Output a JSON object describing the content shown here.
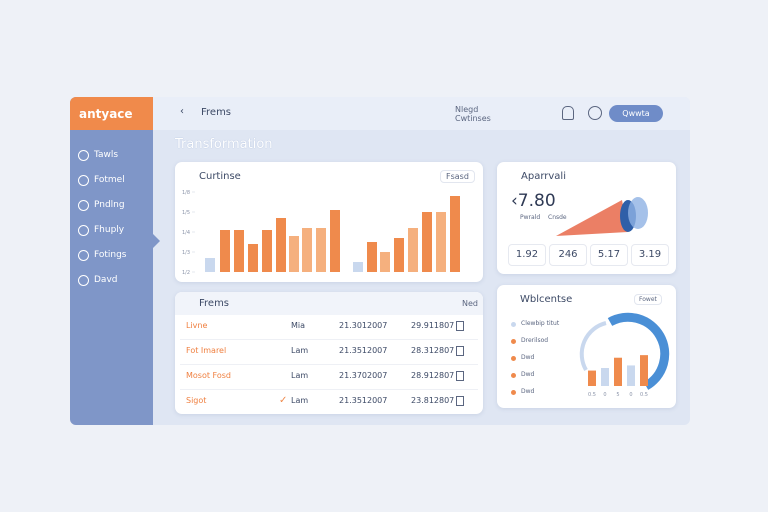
{
  "logo": "antyace",
  "nav": [
    "Tawls",
    "Fotmel",
    "Pndlng",
    "Fhuply",
    "Fotings",
    "Davd"
  ],
  "header": {
    "breadcrumb": "Frems",
    "info": "Nlegd Cwtinses",
    "button": "Qwwta"
  },
  "page_title": "Transformation",
  "bar_card": {
    "title": "Curtinse",
    "dropdown": "Fsasd",
    "ylim": [
      0,
      20
    ],
    "yticks": [
      {
        "value": 20,
        "label": "1/8"
      },
      {
        "value": 15,
        "label": "1/5"
      },
      {
        "value": 10,
        "label": "1/4"
      },
      {
        "value": 5,
        "label": "1/3"
      },
      {
        "value": 0,
        "label": "1/2"
      }
    ],
    "values": [
      3.5,
      10.5,
      10.5,
      7,
      10.5,
      13.5,
      9,
      11,
      11,
      15.5,
      2.5,
      7.5,
      5,
      8.5,
      11,
      15,
      15,
      19
    ],
    "colors": [
      "#c9d8ee",
      "#ef8a4c",
      "#ef8a4c",
      "#ef8a4c",
      "#ef8a4c",
      "#ef8a4c",
      "#f5b07e",
      "#f5b07e",
      "#f5b07e",
      "#ef8a4c",
      "#c9d8ee",
      "#ef8a4c",
      "#f5b07e",
      "#ef8a4c",
      "#f5b07e",
      "#ef8a4c",
      "#f5b07e",
      "#ef8a4c"
    ]
  },
  "approval": {
    "title": "Aparrvali",
    "amount": "‹7.80",
    "legend": [
      "Pwrald",
      "Cnsde"
    ],
    "stats": [
      "1.92",
      "246",
      "5.17",
      "3.19"
    ]
  },
  "table": {
    "title": "Frems",
    "action": "Ned",
    "rows": [
      [
        "Livne",
        "Mia",
        "21.3012007",
        "29.911807"
      ],
      [
        "Fot Imarel",
        "Lam",
        "21.3512007",
        "28.312807"
      ],
      [
        "Mosot Fosd",
        "Lam",
        "21.3702007",
        "28.912807"
      ],
      [
        "Sigot",
        "Lam",
        "21.3512007",
        "23.812807"
      ]
    ]
  },
  "widget": {
    "title": "Wblcentse",
    "dropdown": "Fowet",
    "legend": [
      "Clewbip titut",
      "Drerilsod",
      "Dwd",
      "Dwd",
      "Dwd"
    ],
    "ylim": [
      0,
      14
    ],
    "values": [
      6,
      7,
      11,
      8,
      12
    ],
    "colors": [
      "#ef8a4c",
      "#c9d8ee",
      "#ef8a4c",
      "#c9d8ee",
      "#ef8a4c"
    ],
    "xlabels": [
      "0.5",
      "0",
      "5",
      "0",
      "0.5"
    ]
  }
}
